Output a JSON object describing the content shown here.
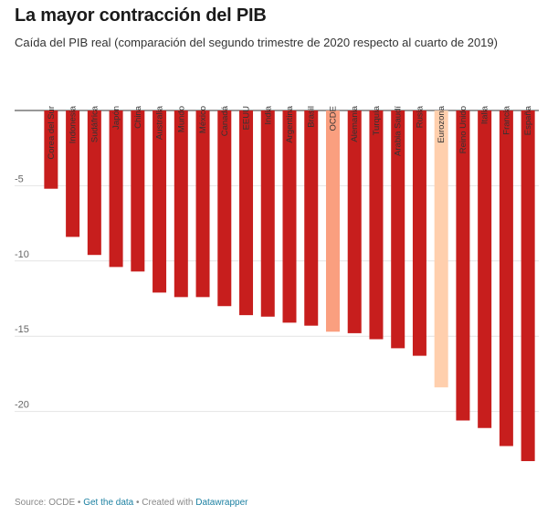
{
  "title": "La mayor contracción del PIB",
  "subtitle": "Caída del PIB real (comparación del segundo trimestre de 2020 respecto al cuarto de 2019)",
  "footer": {
    "source": "Source: OCDE",
    "sep1": " • ",
    "link": "Get the data",
    "sep2": " • Created with ",
    "tool": "Datawrapper"
  },
  "chart_data": {
    "type": "bar",
    "categories": [
      "Corea del Sur",
      "Indonesia",
      "Sudáfrica",
      "Japón",
      "China",
      "Australia",
      "Mundo",
      "México",
      "Canadá",
      "EEUU",
      "India",
      "Argentina",
      "Brasil",
      "OCDE",
      "Alemania",
      "Turquía",
      "Arabia Saudí",
      "Rusia",
      "Eurozona",
      "Reino Unido",
      "Italia",
      "Francia",
      "España"
    ],
    "values": [
      -5.2,
      -8.4,
      -9.6,
      -10.4,
      -10.7,
      -12.1,
      -12.4,
      -12.4,
      -13.0,
      -13.6,
      -13.7,
      -14.1,
      -14.3,
      -14.7,
      -14.8,
      -15.2,
      -15.8,
      -16.3,
      -18.4,
      -20.6,
      -21.1,
      -22.3,
      -23.3
    ],
    "colors": [
      "#c71e1d",
      "#c71e1d",
      "#c71e1d",
      "#c71e1d",
      "#c71e1d",
      "#c71e1d",
      "#c71e1d",
      "#c71e1d",
      "#c71e1d",
      "#c71e1d",
      "#c71e1d",
      "#c71e1d",
      "#c71e1d",
      "#fa9f7f",
      "#c71e1d",
      "#c71e1d",
      "#c71e1d",
      "#c71e1d",
      "#ffcfad",
      "#c71e1d",
      "#c71e1d",
      "#c71e1d",
      "#c71e1d"
    ],
    "yticks": [
      0,
      -5,
      -10,
      -15,
      -20
    ],
    "ytick_labels": [
      "",
      "-5",
      "-10",
      "-15",
      "-20"
    ],
    "ylim": [
      -24,
      0
    ],
    "grid": true,
    "xlabel": "",
    "ylabel": ""
  }
}
